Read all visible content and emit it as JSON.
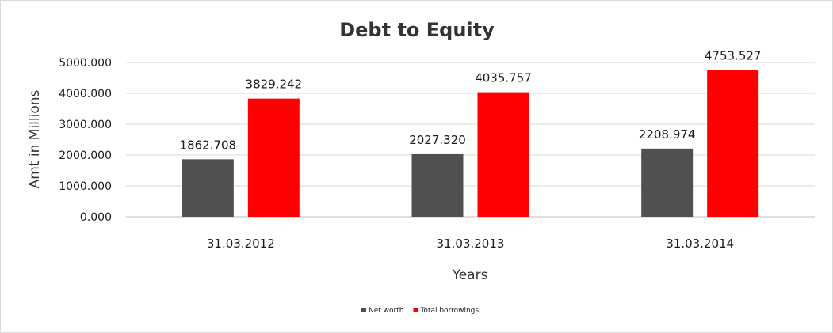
{
  "chart_data": {
    "type": "bar",
    "title": "Debt to Equity",
    "xlabel": "Years",
    "ylabel": "Amt in Millions",
    "categories": [
      "31.03.2012",
      "31.03.2013",
      "31.03.2014"
    ],
    "series": [
      {
        "name": "Net worth",
        "color": "#505050",
        "values": [
          1862.708,
          2027.32,
          2208.974
        ],
        "labels": [
          "1862.708",
          "2027.320",
          "2208.974"
        ]
      },
      {
        "name": "Total borrowings",
        "color": "#ff0000",
        "values": [
          3829.242,
          4035.757,
          4753.527
        ],
        "labels": [
          "3829.242",
          "4035.757",
          "4753.527"
        ]
      }
    ],
    "ylim": [
      0,
      5000
    ],
    "yticks": [
      0,
      1000,
      2000,
      3000,
      4000,
      5000
    ],
    "ytick_labels": [
      "0.000",
      "1000.000",
      "2000.000",
      "3000.000",
      "4000.000",
      "5000.000"
    ],
    "grid": true,
    "legend": "bottom"
  }
}
